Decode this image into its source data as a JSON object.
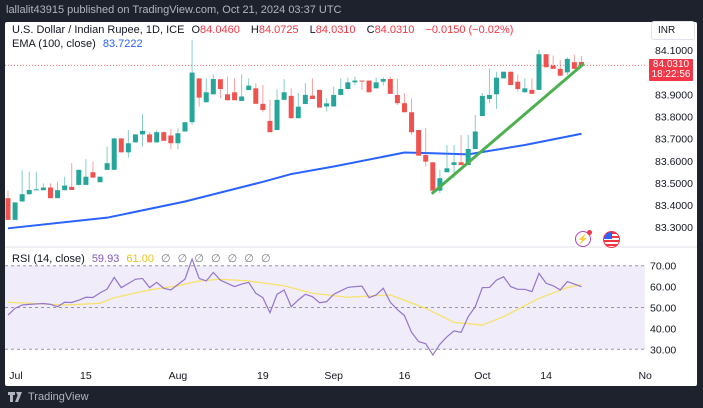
{
  "header": {
    "published": "lallalit43915 published on TradingView.com, Oct 21, 2024 03:37 UTC"
  },
  "legend": {
    "symbol": "U.S. Dollar / Indian Rupee, 1D, ICE",
    "o_label": "O",
    "o": "84.0460",
    "h_label": "H",
    "h": "84.0725",
    "l_label": "L",
    "l": "84.0310",
    "c_label": "C",
    "c": "84.0310",
    "change": "−0.0150 (−0.02%)",
    "ema_label": "EMA (100, close)",
    "ema_value": "83.7222"
  },
  "price_axis": {
    "currency": "INR",
    "ticks": [
      "84.1000",
      "83.9000",
      "83.8000",
      "83.7000",
      "83.6000",
      "83.5000",
      "83.4000",
      "83.3000"
    ],
    "last_price": "84.0310",
    "countdown": "18:22:56"
  },
  "rsi": {
    "label": "RSI (14, close)",
    "value": "59.93",
    "ma_value": "61.00",
    "placeholders": [
      "∅",
      "∅",
      "∅",
      "∅",
      "∅",
      "∅",
      "∅"
    ],
    "ticks": [
      "70.00",
      "60.00",
      "50.00",
      "40.00",
      "30.00"
    ]
  },
  "time_axis": {
    "ticks": [
      {
        "label": "Jul",
        "date": "2024-07-01"
      },
      {
        "label": "15",
        "date": "2024-07-15"
      },
      {
        "label": "Aug",
        "date": "2024-08-01"
      },
      {
        "label": "19",
        "date": "2024-08-19"
      },
      {
        "label": "Sep",
        "date": "2024-09-02"
      },
      {
        "label": "16",
        "date": "2024-09-16"
      },
      {
        "label": "Oct",
        "date": "2024-10-01"
      },
      {
        "label": "14",
        "date": "2024-10-14"
      },
      {
        "label": "No",
        "date": "2024-11-01"
      }
    ]
  },
  "icons": {
    "alert": "lightning-icon",
    "country": "us-flag-icon",
    "brand": "tradingview-logo-icon"
  },
  "footer": {
    "brand": "TradingView"
  },
  "colors": {
    "up": "#26a69a",
    "down": "#ef5350",
    "ema": "#2962ff",
    "trendline": "#4caf50",
    "rsi": "#9575cd",
    "rsi_ma": "#f7e26b",
    "rsi_band": "#f0ecfa",
    "last_price": "#f23645"
  },
  "chart_data": {
    "type": "candlestick",
    "ylim": [
      83.26,
      84.16
    ],
    "candles_format": [
      "date",
      "open",
      "high",
      "low",
      "close"
    ],
    "candles": [
      [
        "2024-06-28",
        83.431,
        83.464,
        83.333,
        83.333
      ],
      [
        "2024-07-01",
        83.333,
        83.412,
        83.333,
        83.412
      ],
      [
        "2024-07-02",
        83.416,
        83.559,
        83.416,
        83.449
      ],
      [
        "2024-07-03",
        83.449,
        83.551,
        83.446,
        83.468
      ],
      [
        "2024-07-04",
        83.471,
        83.551,
        83.468,
        83.471
      ],
      [
        "2024-07-05",
        83.467,
        83.498,
        83.467,
        83.479
      ],
      [
        "2024-07-08",
        83.479,
        83.498,
        83.431,
        83.431
      ],
      [
        "2024-07-09",
        83.431,
        83.506,
        83.431,
        83.467
      ],
      [
        "2024-07-10",
        83.467,
        83.528,
        83.467,
        83.488
      ],
      [
        "2024-07-11",
        83.482,
        83.589,
        83.468,
        83.468
      ],
      [
        "2024-07-12",
        83.491,
        83.559,
        83.488,
        83.559
      ],
      [
        "2024-07-15",
        83.491,
        83.607,
        83.491,
        83.528
      ],
      [
        "2024-07-16",
        83.548,
        83.596,
        83.521,
        83.524
      ],
      [
        "2024-07-17",
        83.503,
        83.528,
        83.503,
        83.528
      ],
      [
        "2024-07-18",
        83.559,
        83.664,
        83.559,
        83.589
      ],
      [
        "2024-07-19",
        83.559,
        83.701,
        83.559,
        83.701
      ],
      [
        "2024-07-22",
        83.701,
        83.701,
        83.638,
        83.638
      ],
      [
        "2024-07-23",
        83.638,
        83.739,
        83.614,
        83.679
      ],
      [
        "2024-07-24",
        83.683,
        83.719,
        83.683,
        83.719
      ],
      [
        "2024-07-25",
        83.719,
        83.81,
        83.664,
        83.735
      ],
      [
        "2024-07-26",
        83.719,
        83.729,
        83.683,
        83.683
      ],
      [
        "2024-07-29",
        83.683,
        83.738,
        83.683,
        83.729
      ],
      [
        "2024-07-30",
        83.729,
        83.733,
        83.69,
        83.69
      ],
      [
        "2024-07-31",
        83.714,
        83.744,
        83.652,
        83.679
      ],
      [
        "2024-08-01",
        83.679,
        83.747,
        83.652,
        83.724
      ],
      [
        "2024-08-02",
        83.732,
        83.774,
        83.732,
        83.774
      ],
      [
        "2024-08-05",
        83.774,
        84.145,
        83.762,
        83.998
      ],
      [
        "2024-08-06",
        83.972,
        83.972,
        83.844,
        83.885
      ],
      [
        "2024-08-07",
        83.864,
        83.972,
        83.864,
        83.909
      ],
      [
        "2024-08-08",
        83.9,
        83.99,
        83.9,
        83.969
      ],
      [
        "2024-08-09",
        83.968,
        83.968,
        83.882,
        83.924
      ],
      [
        "2024-08-12",
        83.9,
        83.98,
        83.873,
        83.873
      ],
      [
        "2024-08-13",
        83.909,
        83.972,
        83.873,
        83.873
      ],
      [
        "2024-08-14",
        83.87,
        83.99,
        83.87,
        83.89
      ],
      [
        "2024-08-15",
        83.919,
        83.972,
        83.919,
        83.939
      ],
      [
        "2024-08-16",
        83.927,
        83.95,
        83.857,
        83.857
      ],
      [
        "2024-08-19",
        83.857,
        83.942,
        83.819,
        83.829
      ],
      [
        "2024-08-20",
        83.78,
        83.875,
        83.729,
        83.729
      ],
      [
        "2024-08-21",
        83.739,
        83.923,
        83.739,
        83.875
      ],
      [
        "2024-08-22",
        83.875,
        83.968,
        83.875,
        83.909
      ],
      [
        "2024-08-23",
        83.893,
        83.927,
        83.792,
        83.792
      ],
      [
        "2024-08-26",
        83.792,
        83.905,
        83.792,
        83.844
      ],
      [
        "2024-08-27",
        83.856,
        83.95,
        83.856,
        83.897
      ],
      [
        "2024-08-28",
        83.894,
        83.972,
        83.879,
        83.879
      ],
      [
        "2024-08-29",
        83.92,
        83.92,
        83.84,
        83.84
      ],
      [
        "2024-08-30",
        83.845,
        83.882,
        83.822,
        83.859
      ],
      [
        "2024-09-02",
        83.845,
        83.935,
        83.845,
        83.897
      ],
      [
        "2024-09-03",
        83.897,
        83.972,
        83.897,
        83.924
      ],
      [
        "2024-09-04",
        83.924,
        83.975,
        83.924,
        83.954
      ],
      [
        "2024-09-05",
        83.954,
        83.98,
        83.942,
        83.962
      ],
      [
        "2024-09-06",
        83.962,
        83.962,
        83.92,
        83.96
      ],
      [
        "2024-09-09",
        83.962,
        83.962,
        83.909,
        83.909
      ],
      [
        "2024-09-10",
        83.927,
        83.975,
        83.927,
        83.954
      ],
      [
        "2024-09-11",
        83.957,
        83.975,
        83.939,
        83.969
      ],
      [
        "2024-09-12",
        83.969,
        83.98,
        83.902,
        83.902
      ],
      [
        "2024-09-13",
        83.897,
        83.972,
        83.852,
        83.86
      ],
      [
        "2024-09-16",
        83.86,
        83.905,
        83.819,
        83.819
      ],
      [
        "2024-09-17",
        83.819,
        83.882,
        83.717,
        83.729
      ],
      [
        "2024-09-18",
        83.739,
        83.739,
        83.623,
        83.623
      ],
      [
        "2024-09-19",
        83.626,
        83.747,
        83.574,
        83.596
      ],
      [
        "2024-09-20",
        83.593,
        83.593,
        83.465,
        83.465
      ],
      [
        "2024-09-23",
        83.465,
        83.559,
        83.453,
        83.521
      ],
      [
        "2024-09-24",
        83.548,
        83.671,
        83.548,
        83.566
      ],
      [
        "2024-09-25",
        83.581,
        83.671,
        83.521,
        83.593
      ],
      [
        "2024-09-26",
        83.593,
        83.716,
        83.581,
        83.581
      ],
      [
        "2024-09-27",
        83.581,
        83.716,
        83.581,
        83.653
      ],
      [
        "2024-09-30",
        83.653,
        83.807,
        83.653,
        83.732
      ],
      [
        "2024-10-01",
        83.802,
        83.905,
        83.802,
        83.893
      ],
      [
        "2024-10-02",
        83.879,
        84.017,
        83.86,
        83.897
      ],
      [
        "2024-10-03",
        83.9,
        84.002,
        83.834,
        83.975
      ],
      [
        "2024-10-04",
        83.972,
        84.002,
        83.972,
        84.002
      ],
      [
        "2024-10-07",
        84.002,
        84.002,
        83.942,
        83.942
      ],
      [
        "2024-10-08",
        83.957,
        83.99,
        83.912,
        83.924
      ],
      [
        "2024-10-09",
        83.909,
        83.972,
        83.909,
        83.927
      ],
      [
        "2024-10-10",
        83.92,
        83.972,
        83.902,
        83.902
      ],
      [
        "2024-10-11",
        83.92,
        84.1,
        83.92,
        84.081
      ],
      [
        "2024-10-14",
        84.081,
        84.081,
        84.022,
        84.022
      ],
      [
        "2024-10-15",
        84.03,
        84.075,
        84.015,
        84.015
      ],
      [
        "2024-10-16",
        84.015,
        84.055,
        83.984,
        83.984
      ],
      [
        "2024-10-17",
        83.999,
        84.067,
        83.987,
        84.06
      ],
      [
        "2024-10-18",
        84.045,
        84.078,
        84.015,
        84.015
      ],
      [
        "2024-10-21",
        84.046,
        84.0725,
        84.031,
        84.031
      ]
    ],
    "ema_100": [
      [
        "2024-06-28",
        83.295
      ],
      [
        "2024-07-18",
        83.343
      ],
      [
        "2024-08-02",
        83.416
      ],
      [
        "2024-08-19",
        83.505
      ],
      [
        "2024-08-23",
        83.54
      ],
      [
        "2024-09-02",
        83.574
      ],
      [
        "2024-09-16",
        83.637
      ],
      [
        "2024-09-20",
        83.634
      ],
      [
        "2024-09-27",
        83.629
      ],
      [
        "2024-10-09",
        83.671
      ],
      [
        "2024-10-21",
        83.722
      ]
    ],
    "trendline": [
      [
        "2024-09-20",
        83.455
      ],
      [
        "2024-10-21",
        84.035
      ]
    ],
    "rsi_ylim": [
      30,
      70
    ],
    "rsi_values": [
      46.4,
      49.6,
      51.2,
      51.5,
      51.7,
      51.9,
      51.5,
      50.4,
      52.5,
      52.4,
      53.5,
      54.9,
      54.8,
      57.0,
      58.8,
      64.4,
      59.5,
      61.5,
      63.5,
      63.9,
      59.5,
      62.0,
      59.2,
      58.4,
      61.0,
      63.6,
      73.2,
      63.9,
      62.7,
      66.8,
      63.1,
      61.5,
      60.0,
      61.2,
      62.0,
      56.8,
      54.7,
      47.5,
      56.3,
      58.4,
      50.4,
      53.6,
      56.3,
      55.2,
      52.3,
      52.8,
      56.3,
      58.0,
      59.6,
      60.0,
      60.2,
      54.7,
      56.0,
      59.2,
      52.5,
      49.0,
      46.1,
      38.1,
      33.7,
      32.7,
      27.3,
      32.4,
      36.0,
      38.8,
      38.1,
      45.6,
      50.4,
      59.5,
      59.6,
      63.1,
      64.7,
      60.0,
      58.7,
      58.7,
      57.6,
      66.3,
      61.6,
      60.4,
      58.4,
      62.4,
      61.2,
      59.93
    ],
    "rsi_ma": [
      [
        "2024-06-28",
        52.5
      ],
      [
        "2024-07-10",
        51.2
      ],
      [
        "2024-07-17",
        52.0
      ],
      [
        "2024-07-19",
        54.7
      ],
      [
        "2024-07-26",
        58.4
      ],
      [
        "2024-08-01",
        60.4
      ],
      [
        "2024-08-06",
        62.7
      ],
      [
        "2024-08-09",
        63.5
      ],
      [
        "2024-08-15",
        62.7
      ],
      [
        "2024-08-22",
        60.4
      ],
      [
        "2024-08-28",
        56.8
      ],
      [
        "2024-09-04",
        54.9
      ],
      [
        "2024-09-12",
        56.0
      ],
      [
        "2024-09-19",
        49.6
      ],
      [
        "2024-09-25",
        42.9
      ],
      [
        "2024-10-01",
        41.6
      ],
      [
        "2024-10-04",
        45.6
      ],
      [
        "2024-10-11",
        54.4
      ],
      [
        "2024-10-17",
        59.5
      ],
      [
        "2024-10-21",
        61.0
      ]
    ]
  }
}
